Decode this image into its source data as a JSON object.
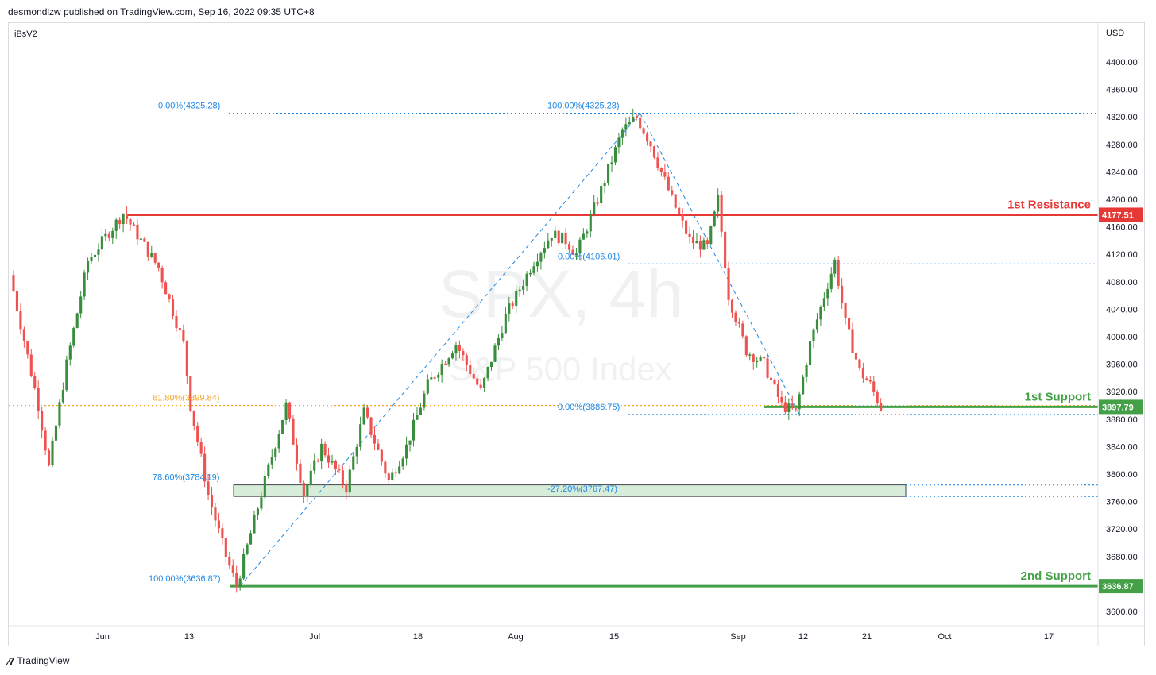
{
  "header": {
    "publisher": "desmondlzw published on TradingView.com, Sep 16, 2022 09:35 UTC+8"
  },
  "footer": {
    "brand": "TradingView"
  },
  "colors": {
    "up": "#388e3c",
    "down": "#ef5350",
    "resistance": "#e53935",
    "support": "#43a047",
    "fib": "#1e88e5",
    "fibHalf": "#f5a623",
    "zone": "#c8e6c9"
  },
  "chart_data": {
    "type": "candlestick",
    "symbol_watermark": "SPX, 4h",
    "name_watermark": "S&P 500 Index",
    "indicator": "iBsV2",
    "currency": "USD",
    "ylim": [
      3570,
      4430
    ],
    "y_ticks": [
      3600,
      3640,
      3680,
      3720,
      3760,
      3800,
      3840,
      3880,
      3920,
      3960,
      4000,
      4040,
      4080,
      4120,
      4160,
      4200,
      4240,
      4280,
      4320,
      4360,
      4400
    ],
    "x_ticks": [
      "Jun",
      "13",
      "Jul",
      "18",
      "Aug",
      "15",
      "Sep",
      "12",
      "21",
      "Oct",
      "17"
    ],
    "levels": [
      {
        "label": "1st Resistance",
        "price": "4177.51",
        "value": 4177.51,
        "kind": "resistance"
      },
      {
        "label": "1st Support",
        "price": "3897.79",
        "value": 3897.79,
        "kind": "support"
      },
      {
        "label": "2nd Support",
        "price": "3636.87",
        "value": 3636.87,
        "kind": "support"
      }
    ],
    "fib_labels": [
      {
        "text": "0.00%(4325.28)",
        "value": 4325.28
      },
      {
        "text": "100.00%(4325.28)",
        "value": 4325.28
      },
      {
        "text": "61.80%(3899.84)",
        "value": 3899.84
      },
      {
        "text": "78.60%(3784.19)",
        "value": 3784.19
      },
      {
        "text": "100.00%(3636.87)",
        "value": 3636.87
      },
      {
        "text": "0.00%(4106.01)",
        "value": 4106.01
      },
      {
        "text": "0.00%(3886.75)",
        "value": 3886.75
      },
      {
        "text": "-27.20%(3767.47)",
        "value": 3767.47
      }
    ],
    "zone": {
      "low": 3767.47,
      "high": 3784.19
    },
    "swings": [
      {
        "t": 0,
        "p": 4090
      },
      {
        "t": 8,
        "p": 3900
      },
      {
        "t": 11,
        "p": 3810
      },
      {
        "t": 16,
        "p": 3960
      },
      {
        "t": 22,
        "p": 4110
      },
      {
        "t": 32,
        "p": 4180
      },
      {
        "t": 42,
        "p": 4100
      },
      {
        "t": 49,
        "p": 3990
      },
      {
        "t": 51,
        "p": 3900
      },
      {
        "t": 56,
        "p": 3770
      },
      {
        "t": 61,
        "p": 3680
      },
      {
        "t": 64,
        "p": 3637
      },
      {
        "t": 72,
        "p": 3790
      },
      {
        "t": 78,
        "p": 3900
      },
      {
        "t": 83,
        "p": 3770
      },
      {
        "t": 88,
        "p": 3840
      },
      {
        "t": 95,
        "p": 3780
      },
      {
        "t": 100,
        "p": 3890
      },
      {
        "t": 107,
        "p": 3790
      },
      {
        "t": 112,
        "p": 3840
      },
      {
        "t": 118,
        "p": 3930
      },
      {
        "t": 126,
        "p": 3990
      },
      {
        "t": 133,
        "p": 3920
      },
      {
        "t": 140,
        "p": 4030
      },
      {
        "t": 148,
        "p": 4110
      },
      {
        "t": 153,
        "p": 4150
      },
      {
        "t": 157,
        "p": 4140
      },
      {
        "t": 160,
        "p": 4120
      },
      {
        "t": 166,
        "p": 4200
      },
      {
        "t": 173,
        "p": 4300
      },
      {
        "t": 177,
        "p": 4320
      },
      {
        "t": 181,
        "p": 4280
      },
      {
        "t": 187,
        "p": 4200
      },
      {
        "t": 192,
        "p": 4140
      },
      {
        "t": 197,
        "p": 4130
      },
      {
        "t": 200,
        "p": 4200
      },
      {
        "t": 203,
        "p": 4060
      },
      {
        "t": 208,
        "p": 3980
      },
      {
        "t": 213,
        "p": 3960
      },
      {
        "t": 218,
        "p": 3900
      },
      {
        "t": 222,
        "p": 3890
      },
      {
        "t": 226,
        "p": 3990
      },
      {
        "t": 230,
        "p": 4060
      },
      {
        "t": 233,
        "p": 4110
      },
      {
        "t": 236,
        "p": 4020
      },
      {
        "t": 240,
        "p": 3950
      },
      {
        "t": 243,
        "p": 3930
      },
      {
        "t": 246,
        "p": 3897
      }
    ]
  }
}
